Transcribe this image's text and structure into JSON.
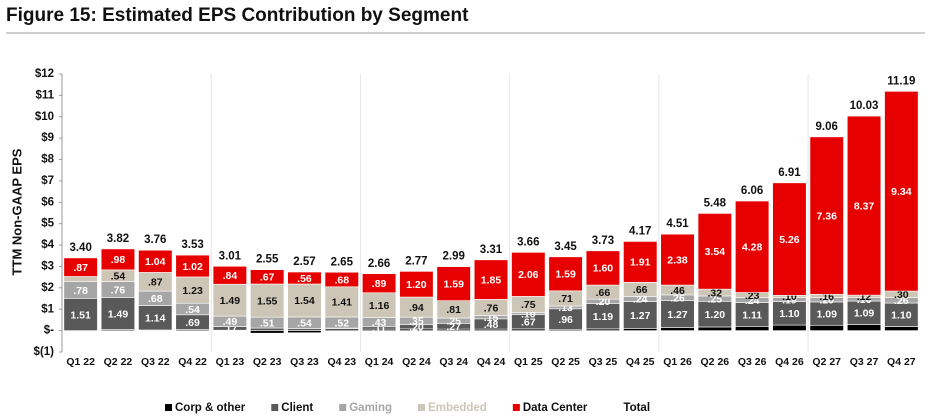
{
  "chart_data": {
    "type": "stacked_bar",
    "title": "Figure 15: Estimated EPS Contribution by Segment",
    "y_label": "TTM Non-GAAP EPS",
    "categories": [
      "Q1 22",
      "Q2 22",
      "Q3 22",
      "Q4 22",
      "Q1 23",
      "Q2 23",
      "Q3 23",
      "Q4 23",
      "Q1 24",
      "Q2 24",
      "Q3 24",
      "Q4 24",
      "Q1 25",
      "Q2 25",
      "Q3 25",
      "Q4 25",
      "Q1 26",
      "Q2 26",
      "Q3 26",
      "Q4 26",
      "Q2 27",
      "Q3 27",
      "Q4 27"
    ],
    "ylim": [
      -1,
      12
    ],
    "yticks": [
      {
        "value": -1,
        "label": "$(1)"
      },
      {
        "value": 0,
        "label": "$-"
      },
      {
        "value": 1,
        "label": "$1"
      },
      {
        "value": 2,
        "label": "$2"
      },
      {
        "value": 3,
        "label": "$3"
      },
      {
        "value": 4,
        "label": "$4"
      },
      {
        "value": 5,
        "label": "$5"
      },
      {
        "value": 6,
        "label": "$6"
      },
      {
        "value": 7,
        "label": "$7"
      },
      {
        "value": 8,
        "label": "$8"
      },
      {
        "value": 9,
        "label": "$9"
      },
      {
        "value": 10,
        "label": "$10"
      },
      {
        "value": 11,
        "label": "$11"
      },
      {
        "value": 12,
        "label": "$12"
      }
    ],
    "series": [
      {
        "name": "Corp & other",
        "color": "#000000",
        "values": [
          0,
          0.05,
          0.03,
          0.05,
          0.02,
          -0.12,
          -0.1,
          0.08,
          0.07,
          0.08,
          0.07,
          0.07,
          0.08,
          0.06,
          0.08,
          0.09,
          0.14,
          0.17,
          0.2,
          0.26,
          0.25,
          0.29,
          0.19
        ]
      },
      {
        "name": "Client",
        "color": "#595959",
        "values": [
          1.51,
          1.49,
          1.14,
          0.69,
          0.17,
          0.12,
          0.1,
          0.04,
          0.11,
          0.2,
          0.27,
          0.48,
          0.67,
          0.96,
          1.19,
          1.27,
          1.27,
          1.2,
          1.11,
          1.1,
          1.09,
          1.09,
          1.1
        ],
        "value_labels": [
          "1.51",
          "1.49",
          "1.14",
          ".69",
          ".17",
          null,
          null,
          null,
          ".11",
          ".20",
          ".27",
          ".48",
          ".67",
          ".96",
          "1.19",
          "1.27",
          "1.27",
          "1.20",
          "1.11",
          "1.10",
          "1.09",
          "1.09",
          "1.10"
        ]
      },
      {
        "name": "Gaming",
        "color": "#a6a6a6",
        "values": [
          0.78,
          0.76,
          0.68,
          0.54,
          0.49,
          0.51,
          0.54,
          0.52,
          0.43,
          0.35,
          0.25,
          0.15,
          0.1,
          0.13,
          0.2,
          0.24,
          0.26,
          0.25,
          0.24,
          0.19,
          0.2,
          0.16,
          0.26
        ],
        "value_labels": [
          ".78",
          ".76",
          ".68",
          ".54",
          ".49",
          ".51",
          ".54",
          ".52",
          ".43",
          ".35",
          ".25",
          ".15",
          ".10",
          ".13",
          ".20",
          ".24",
          ".26",
          ".25",
          ".24",
          ".19",
          ".20",
          ".16",
          ".26"
        ]
      },
      {
        "name": "Embedded",
        "color": "#cdc6b6",
        "values": [
          0.24,
          0.54,
          0.87,
          1.23,
          1.49,
          1.55,
          1.54,
          1.41,
          1.16,
          0.94,
          0.81,
          0.76,
          0.75,
          0.71,
          0.66,
          0.66,
          0.46,
          0.32,
          0.23,
          0.1,
          0.16,
          0.12,
          0.3
        ],
        "value_labels": [
          null,
          ".54",
          ".87",
          "1.23",
          "1.49",
          "1.55",
          "1.54",
          "1.41",
          "1.16",
          ".94",
          ".81",
          ".76",
          ".75",
          ".71",
          ".66",
          ".66",
          ".46",
          ".32",
          ".23",
          ".10",
          ".16",
          ".12",
          ".30"
        ]
      },
      {
        "name": "Data Center",
        "color": "#e60000",
        "values": [
          0.87,
          0.98,
          1.04,
          1.02,
          0.84,
          0.67,
          0.56,
          0.68,
          0.89,
          1.2,
          1.59,
          1.85,
          2.06,
          1.59,
          1.6,
          1.91,
          2.38,
          3.54,
          4.28,
          5.26,
          7.36,
          8.37,
          9.34
        ],
        "value_labels": [
          ".87",
          ".98",
          "1.04",
          "1.02",
          ".84",
          ".67",
          ".56",
          ".68",
          ".89",
          "1.20",
          "1.59",
          "1.85",
          "2.06",
          "1.59",
          "1.60",
          "1.91",
          "2.38",
          "3.54",
          "4.28",
          "5.26",
          "7.36",
          "8.37",
          "9.34"
        ]
      },
      {
        "name": "Total",
        "values": [
          3.4,
          3.82,
          3.76,
          3.53,
          3.01,
          2.55,
          2.57,
          2.65,
          2.66,
          2.77,
          2.99,
          3.31,
          3.66,
          3.45,
          3.73,
          4.17,
          4.51,
          5.48,
          6.06,
          6.91,
          9.06,
          10.03,
          11.19
        ],
        "value_labels": [
          "3.40",
          "3.82",
          "3.76",
          "3.53",
          "3.01",
          "2.55",
          "2.57",
          "2.65",
          "2.66",
          "2.77",
          "2.99",
          "3.31",
          "3.66",
          "3.45",
          "3.73",
          "4.17",
          "4.51",
          "5.48",
          "6.06",
          "6.91",
          "9.06",
          "10.03",
          "11.19"
        ]
      }
    ]
  }
}
